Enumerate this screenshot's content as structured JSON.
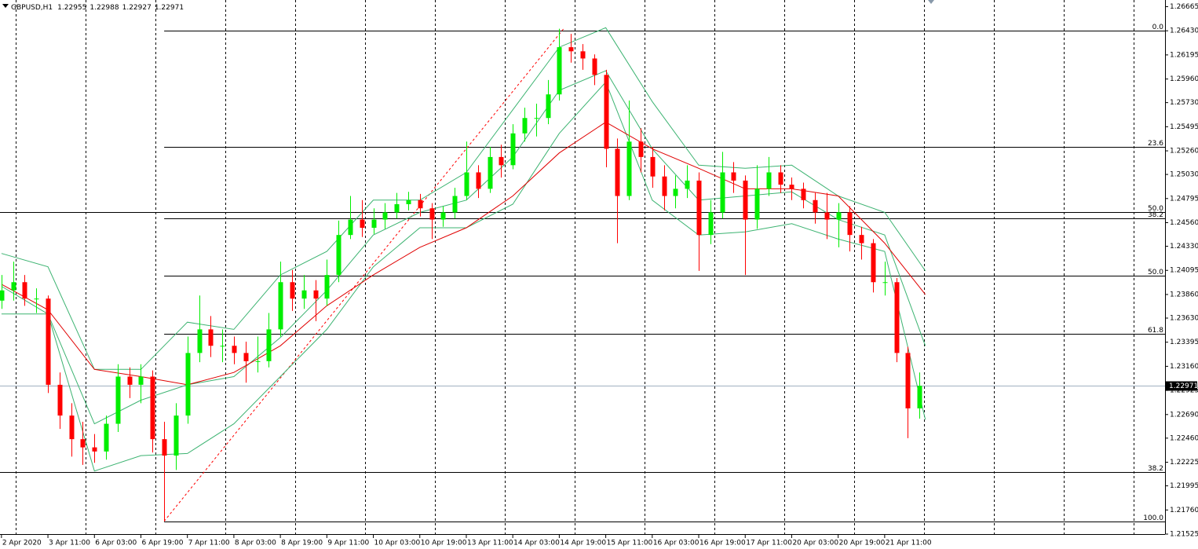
{
  "chart_data": {
    "type": "candlestick",
    "title": "GBPUSD,H1",
    "header_values": [
      1.22955,
      1.22988,
      1.22927,
      1.22971
    ],
    "up_color": "#00ee00",
    "down_color": "#ff0000",
    "x": [
      0,
      4,
      8,
      12,
      16,
      20,
      24,
      28,
      32,
      36,
      40,
      44,
      48,
      52,
      56,
      60,
      64,
      68,
      72,
      76,
      80,
      84,
      88,
      92,
      96,
      100,
      104,
      108,
      112,
      116,
      120,
      124,
      128,
      132,
      136,
      140,
      144,
      148,
      152,
      156,
      160,
      164,
      168,
      172,
      176,
      180,
      184,
      188,
      192,
      196,
      200,
      204,
      208,
      212,
      216,
      220,
      224,
      228,
      232,
      236,
      240,
      244,
      248,
      252,
      256,
      260,
      264,
      268,
      272,
      276,
      280,
      284,
      288,
      292,
      296,
      300,
      304,
      308,
      312,
      316
    ],
    "open": [
      1.238,
      1.239,
      1.2398,
      1.2382,
      1.2382,
      1.2298,
      1.2268,
      1.2245,
      1.2237,
      1.2233,
      1.226,
      1.2306,
      1.2298,
      1.2306,
      1.2245,
      1.2229,
      1.2268,
      1.2329,
      1.2352,
      1.2336,
      1.2336,
      1.2329,
      1.2321,
      1.2321,
      1.2352,
      1.2398,
      1.2382,
      1.239,
      1.2382,
      1.2405,
      1.2444,
      1.2459,
      1.2451,
      1.2459,
      1.2466,
      1.2474,
      1.2478,
      1.247,
      1.2459,
      1.2466,
      1.2482,
      1.2505,
      1.2489,
      1.252,
      1.2512,
      1.2543,
      1.2558,
      1.2558,
      1.2581,
      1.2627,
      1.2623,
      1.2616,
      1.26,
      1.2528,
      1.2482,
      1.2535,
      1.252,
      1.2501,
      1.2482,
      1.2489,
      1.2497,
      1.2444,
      1.2466,
      1.2505,
      1.2497,
      1.2459,
      1.2489,
      1.2505,
      1.2493,
      1.2489,
      1.2478,
      1.2466,
      1.2459,
      1.2466,
      1.2444,
      1.2436,
      1.2398,
      1.2398,
      1.2329,
      1.2275
    ],
    "high": [
      1.2405,
      1.2418,
      1.2405,
      1.2392,
      1.2385,
      1.231,
      1.228,
      1.2262,
      1.225,
      1.2268,
      1.2318,
      1.2315,
      1.2318,
      1.2312,
      1.2262,
      1.228,
      1.2345,
      1.2385,
      1.2365,
      1.2352,
      1.2345,
      1.234,
      1.2345,
      1.2368,
      1.2418,
      1.241,
      1.2405,
      1.24,
      1.242,
      1.2458,
      1.2482,
      1.2478,
      1.247,
      1.2475,
      1.2485,
      1.2486,
      1.2484,
      1.2475,
      1.2472,
      1.249,
      1.2535,
      1.2512,
      1.253,
      1.2532,
      1.2552,
      1.2568,
      1.2572,
      1.2595,
      1.2645,
      1.264,
      1.263,
      1.262,
      1.2605,
      1.2538,
      1.2575,
      1.2548,
      1.253,
      1.2512,
      1.2502,
      1.2512,
      1.2505,
      1.2478,
      1.2525,
      1.2515,
      1.2502,
      1.2512,
      1.252,
      1.2512,
      1.25,
      1.2495,
      1.2485,
      1.2485,
      1.2475,
      1.2472,
      1.2452,
      1.244,
      1.2418,
      1.2402,
      1.2335,
      1.231
    ],
    "low": [
      1.2372,
      1.238,
      1.2375,
      1.2368,
      1.229,
      1.2255,
      1.2228,
      1.222,
      1.2222,
      1.2225,
      1.2252,
      1.2285,
      1.228,
      1.2232,
      1.2165,
      1.2215,
      1.226,
      1.232,
      1.2325,
      1.232,
      1.2318,
      1.23,
      1.231,
      1.2315,
      1.2345,
      1.237,
      1.2372,
      1.236,
      1.2375,
      1.2398,
      1.244,
      1.2442,
      1.2445,
      1.245,
      1.246,
      1.2468,
      1.2462,
      1.244,
      1.2452,
      1.246,
      1.2478,
      1.248,
      1.2485,
      1.25,
      1.2508,
      1.2535,
      1.254,
      1.2552,
      1.2575,
      1.2612,
      1.2605,
      1.259,
      1.251,
      1.2436,
      1.2478,
      1.2505,
      1.249,
      1.2468,
      1.247,
      1.248,
      1.2409,
      1.2435,
      1.246,
      1.2485,
      1.2405,
      1.245,
      1.2482,
      1.2485,
      1.2478,
      1.247,
      1.2455,
      1.244,
      1.2432,
      1.2428,
      1.242,
      1.2388,
      1.2385,
      1.232,
      1.2246,
      1.2265
    ],
    "close": [
      1.239,
      1.2398,
      1.2382,
      1.2382,
      1.2298,
      1.2268,
      1.2245,
      1.2237,
      1.2233,
      1.226,
      1.2306,
      1.2298,
      1.2306,
      1.2245,
      1.2229,
      1.2268,
      1.2329,
      1.2352,
      1.2336,
      1.2336,
      1.2329,
      1.2321,
      1.2321,
      1.2352,
      1.2398,
      1.2382,
      1.239,
      1.2382,
      1.2405,
      1.2444,
      1.2459,
      1.2451,
      1.2459,
      1.2466,
      1.2474,
      1.2478,
      1.247,
      1.2459,
      1.2466,
      1.2482,
      1.2505,
      1.2489,
      1.252,
      1.2512,
      1.2543,
      1.2558,
      1.2558,
      1.2581,
      1.2627,
      1.2623,
      1.2616,
      1.26,
      1.2528,
      1.2482,
      1.2535,
      1.252,
      1.2501,
      1.2482,
      1.2489,
      1.2497,
      1.2444,
      1.2466,
      1.2505,
      1.2497,
      1.2459,
      1.2489,
      1.2505,
      1.2493,
      1.2489,
      1.2478,
      1.2466,
      1.2459,
      1.2466,
      1.2444,
      1.2436,
      1.2398,
      1.2398,
      1.2329,
      1.2275,
      1.2297
    ],
    "line_x": [
      0,
      16,
      32,
      48,
      64,
      80,
      96,
      112,
      128,
      144,
      160,
      176,
      192,
      208,
      224,
      240,
      256,
      272,
      288,
      304,
      318
    ],
    "lines": [
      {
        "color": "#3cb371",
        "values": [
          1.2426,
          1.2413,
          1.2313,
          1.2313,
          1.2359,
          1.2352,
          1.2405,
          1.2428,
          1.2478,
          1.2478,
          1.2505,
          1.2566,
          1.2627,
          1.2646,
          1.2574,
          1.2512,
          1.2509,
          1.2512,
          1.2482,
          1.2466,
          1.2409
        ]
      },
      {
        "color": "#3cb371",
        "values": [
          1.2394,
          1.2367,
          1.226,
          1.2283,
          1.2298,
          1.2306,
          1.2344,
          1.239,
          1.2444,
          1.2466,
          1.2478,
          1.252,
          1.2585,
          1.2604,
          1.2528,
          1.2478,
          1.2482,
          1.2486,
          1.2459,
          1.2444,
          1.2336
        ]
      },
      {
        "color": "#3cb371",
        "values": [
          1.2367,
          1.2367,
          1.2214,
          1.2229,
          1.2231,
          1.226,
          1.2306,
          1.2352,
          1.2413,
          1.2451,
          1.2451,
          1.2474,
          1.2543,
          1.2593,
          1.2478,
          1.2444,
          1.2447,
          1.2455,
          1.244,
          1.2428,
          1.2264
        ]
      },
      {
        "color": "#e00000",
        "values": [
          1.2396,
          1.2371,
          1.2313,
          1.2306,
          1.2298,
          1.231,
          1.2336,
          1.2375,
          1.2405,
          1.2432,
          1.2451,
          1.2482,
          1.2524,
          1.2554,
          1.2528,
          1.2509,
          1.2489,
          1.2489,
          1.2482,
          1.2436,
          1.2386
        ]
      }
    ],
    "fibonacci": [
      {
        "x_start": 56,
        "color": "#000000",
        "levels": [
          {
            "label": "0.0",
            "value": 1.2643
          },
          {
            "label": "23.6",
            "value": 1.253
          },
          {
            "label": "38.2",
            "value": 1.246
          },
          {
            "label": "50.0",
            "value": 1.2404
          },
          {
            "label": "61.8",
            "value": 1.2348
          },
          {
            "label": "100.0",
            "value": 1.2165
          }
        ]
      },
      {
        "x_start": -0.5,
        "color": "#000000",
        "levels": [
          {
            "label": "50.0",
            "value": 1.2466
          },
          {
            "label": "38.2",
            "value": 1.2213
          }
        ]
      }
    ],
    "trendline": {
      "x": [
        56,
        193.5
      ],
      "values": [
        1.2165,
        1.2645
      ],
      "color": "#ff0000"
    },
    "last_price": 1.22971,
    "xlim": [
      -0.5,
      400.5
    ],
    "xticks": [
      {
        "value": 0,
        "label": "2 Apr 2020"
      },
      {
        "value": 16,
        "label": "3 Apr 11:00"
      },
      {
        "value": 32,
        "label": "6 Apr 03:00"
      },
      {
        "value": 48,
        "label": "6 Apr 19:00"
      },
      {
        "value": 64,
        "label": "7 Apr 11:00"
      },
      {
        "value": 80,
        "label": "8 Apr 03:00"
      },
      {
        "value": 96,
        "label": "8 Apr 19:00"
      },
      {
        "value": 112,
        "label": "9 Apr 11:00"
      },
      {
        "value": 128,
        "label": "10 Apr 03:00"
      },
      {
        "value": 144,
        "label": "10 Apr 19:00"
      },
      {
        "value": 160,
        "label": "13 Apr 11:00"
      },
      {
        "value": 176,
        "label": "14 Apr 03:00"
      },
      {
        "value": 192,
        "label": "14 Apr 19:00"
      },
      {
        "value": 208,
        "label": "15 Apr 11:00"
      },
      {
        "value": 224,
        "label": "16 Apr 03:00"
      },
      {
        "value": 240,
        "label": "16 Apr 19:00"
      },
      {
        "value": 256,
        "label": "17 Apr 11:00"
      },
      {
        "value": 272,
        "label": "20 Apr 03:00"
      },
      {
        "value": 288,
        "label": "20 Apr 19:00"
      },
      {
        "value": 304,
        "label": "21 Apr 11:00"
      }
    ],
    "ylim": [
      1.21525,
      1.2673
    ],
    "yticks": [
      1.26665,
      {
        "value": 1.2643,
        "label": "1.26430"
      },
      1.26195,
      {
        "value": 1.2596,
        "label": "1.25960"
      },
      {
        "value": 1.2573,
        "label": "1.25730"
      },
      1.25495,
      {
        "value": 1.2526,
        "label": "1.25260"
      },
      {
        "value": 1.2503,
        "label": "1.25030"
      },
      1.24795,
      {
        "value": 1.2456,
        "label": "1.24560"
      },
      {
        "value": 1.2433,
        "label": "1.24330"
      },
      1.24095,
      {
        "value": 1.2386,
        "label": "1.23860"
      },
      {
        "value": 1.2363,
        "label": "1.23630"
      },
      1.23395,
      {
        "value": 1.2316,
        "label": "1.23160"
      },
      1.22925,
      {
        "value": 1.2269,
        "label": "1.22690"
      },
      {
        "value": 1.2246,
        "label": "1.22460"
      },
      1.22225,
      1.21995,
      {
        "value": 1.2176,
        "label": "1.21760"
      },
      1.21525
    ]
  }
}
